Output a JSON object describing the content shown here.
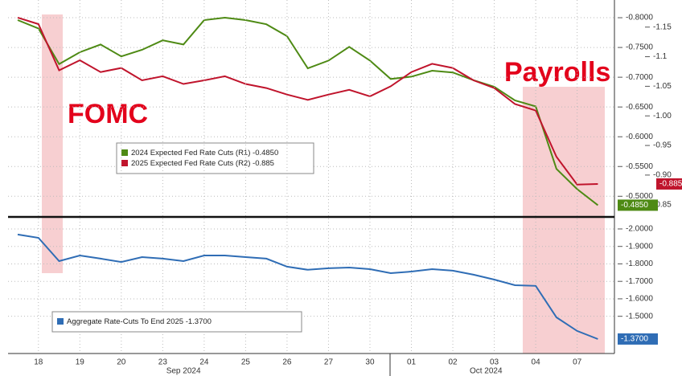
{
  "chart_data": [
    {
      "type": "line",
      "annotations": [
        "FOMC",
        "Payrolls"
      ],
      "x": [
        0,
        0.5,
        1,
        1.5,
        2,
        2.5,
        3,
        3.5,
        4,
        4.5,
        5,
        5.5,
        6,
        6.5,
        7,
        7.5,
        8,
        8.5,
        9,
        9.5,
        10,
        10.5,
        11,
        11.5,
        12,
        12.5,
        13,
        13.5,
        14
      ],
      "xlim": [
        0,
        14.4
      ],
      "y_inverted": true,
      "ylim": [
        -0.823,
        -0.468
      ],
      "yticks": [
        {
          "value": -0.8,
          "label": "-0.8000"
        },
        {
          "value": -0.75,
          "label": "-0.7500"
        },
        {
          "value": -0.7,
          "label": "-0.7000"
        },
        {
          "value": -0.65,
          "label": "-0.6500"
        },
        {
          "value": -0.6,
          "label": "-0.6000"
        },
        {
          "value": -0.55,
          "label": "-0.5500"
        },
        {
          "value": -0.5,
          "label": "-0.5000"
        }
      ],
      "y2lim": [
        -1.189,
        -0.832
      ],
      "y2ticks": [
        -1.15,
        -1.1,
        -1.05,
        {
          "value": -1,
          "label": "-1.00"
        },
        -0.95,
        {
          "value": -0.9,
          "label": "-0.90"
        },
        -0.85
      ],
      "grid": true,
      "series": [
        {
          "name": "2024 Expected Fed Rate Cuts (R1)",
          "color": "#4e8a14",
          "axis": "y",
          "last_value_label": "-0.4850",
          "values": [
            -0.796,
            -0.782,
            -0.722,
            -0.742,
            -0.755,
            -0.735,
            -0.746,
            -0.762,
            -0.755,
            -0.796,
            -0.8,
            -0.796,
            -0.789,
            -0.769,
            -0.715,
            -0.728,
            -0.751,
            -0.728,
            -0.697,
            -0.701,
            -0.711,
            -0.708,
            -0.695,
            -0.684,
            -0.661,
            -0.651,
            -0.546,
            -0.512,
            -0.485
          ]
        },
        {
          "name": "2025 Expected Fed Rate Cuts (R2)",
          "color": "#c0142c",
          "axis": "y2",
          "last_value_label": "-0.885",
          "values": [
            -1.166,
            -1.155,
            -1.077,
            -1.094,
            -1.074,
            -1.081,
            -1.06,
            -1.067,
            -1.054,
            -1.06,
            -1.067,
            -1.054,
            -1.047,
            -1.036,
            -1.027,
            -1.036,
            -1.044,
            -1.033,
            -1.05,
            -1.074,
            -1.088,
            -1.081,
            -1.06,
            -1.047,
            -1.02,
            -1.009,
            -0.931,
            -0.884,
            -0.885
          ]
        }
      ]
    },
    {
      "type": "line",
      "x": [
        0,
        0.5,
        1,
        1.5,
        2,
        2.5,
        3,
        3.5,
        4,
        4.5,
        5,
        5.5,
        6,
        6.5,
        7,
        7.5,
        8,
        8.5,
        9,
        9.5,
        10,
        10.5,
        11,
        11.5,
        12,
        12.5,
        13,
        13.5,
        14
      ],
      "xlim": [
        0,
        14.4
      ],
      "xticks": [
        {
          "value": 0.5,
          "label": "18"
        },
        {
          "value": 1.5,
          "label": "19"
        },
        {
          "value": 2.5,
          "label": "20"
        },
        {
          "value": 3.5,
          "label": "23"
        },
        {
          "value": 4.5,
          "label": "24"
        },
        {
          "value": 5.5,
          "label": "25"
        },
        {
          "value": 6.5,
          "label": "26"
        },
        {
          "value": 7.5,
          "label": "27"
        },
        {
          "value": 8.5,
          "label": "30"
        },
        {
          "value": 9.5,
          "label": "01"
        },
        {
          "value": 10.5,
          "label": "02"
        },
        {
          "value": 11.5,
          "label": "03"
        },
        {
          "value": 12.5,
          "label": "04"
        },
        {
          "value": 13.5,
          "label": "07"
        }
      ],
      "month_labels": [
        {
          "value": 4,
          "label": "Sep 2024"
        },
        {
          "value": 11.3,
          "label": "Oct 2024"
        }
      ],
      "y_inverted": true,
      "ylim": [
        -2.032,
        -1.287
      ],
      "yticks": [
        {
          "value": -2,
          "label": "-2.0000"
        },
        {
          "value": -1.9,
          "label": "-1.9000"
        },
        {
          "value": -1.8,
          "label": "-1.8000"
        },
        {
          "value": -1.7,
          "label": "-1.7000"
        },
        {
          "value": -1.6,
          "label": "-1.6000"
        },
        {
          "value": -1.5,
          "label": "-1.5000"
        }
      ],
      "grid": true,
      "series": [
        {
          "name": "Aggregate Rate-Cuts To End 2025",
          "color": "#2f6db5",
          "axis": "y",
          "last_value_label": "-1.3700",
          "values": [
            -1.968,
            -1.949,
            -1.816,
            -1.848,
            -1.83,
            -1.811,
            -1.839,
            -1.83,
            -1.816,
            -1.848,
            -1.848,
            -1.839,
            -1.83,
            -1.784,
            -1.766,
            -1.775,
            -1.779,
            -1.77,
            -1.747,
            -1.756,
            -1.77,
            -1.761,
            -1.738,
            -1.71,
            -1.678,
            -1.674,
            -1.494,
            -1.416,
            -1.37
          ]
        }
      ]
    }
  ]
}
